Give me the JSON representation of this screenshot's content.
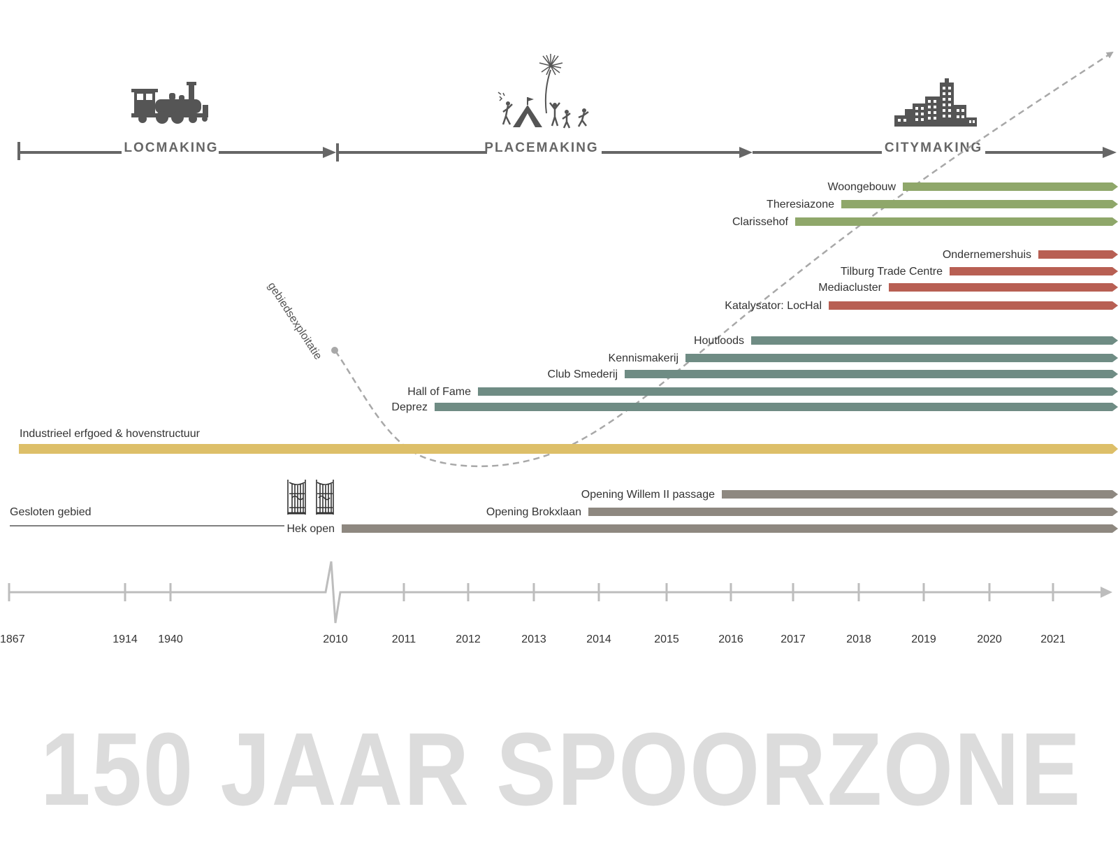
{
  "title": "150 JAAR SPOORZONE",
  "phases": [
    {
      "label": "LOCMAKING",
      "icon": "steam-locomotive-icon"
    },
    {
      "label": "PLACEMAKING",
      "icon": "festival-crowd-icon"
    },
    {
      "label": "CITYMAKING",
      "icon": "city-buildings-icon"
    }
  ],
  "years": [
    "1867",
    "1914",
    "1940",
    "2010",
    "2011",
    "2012",
    "2013",
    "2014",
    "2015",
    "2016",
    "2017",
    "2018",
    "2019",
    "2020",
    "2021"
  ],
  "curve_label": "gebiedsexploitatie",
  "colors": {
    "housing": "#8fa76a",
    "business": "#b85f53",
    "culture": "#6f8c84",
    "heritage": "#ddbf69",
    "access": "#8e8880",
    "axis": "#bdbdbd",
    "phase_axis": "#666666",
    "curve": "#a8a8a8"
  },
  "groups": {
    "housing": [
      {
        "label": "Woongebouw",
        "start": "2019"
      },
      {
        "label": "Theresiazone",
        "start": "2018"
      },
      {
        "label": "Clarissehof",
        "start": "2017"
      }
    ],
    "business": [
      {
        "label": "Ondernemershuis",
        "start": "2021"
      },
      {
        "label": "Tilburg Trade Centre",
        "start": "2019"
      },
      {
        "label": "Mediacluster",
        "start": "2018"
      },
      {
        "label": "Katalysator: LocHal",
        "start": "2018"
      }
    ],
    "culture": [
      {
        "label": "Houtloods",
        "start": "2016"
      },
      {
        "label": "Kennismakerij",
        "start": "2015"
      },
      {
        "label": "Club Smederij",
        "start": "2014"
      },
      {
        "label": "Hall of Fame",
        "start": "2012"
      },
      {
        "label": "Deprez",
        "start": "2011"
      }
    ],
    "heritage": [
      {
        "label": "Industrieel erfgoed & hovenstructuur",
        "start": "1867"
      }
    ],
    "access": [
      {
        "label": "Opening Willem II passage",
        "start": "2016"
      },
      {
        "label": "Opening Brokxlaan",
        "start": "2014"
      },
      {
        "label": "Hek open",
        "start": "2010"
      }
    ],
    "closed": {
      "label": "Gesloten gebied",
      "start": "1867",
      "end": "2010"
    }
  }
}
